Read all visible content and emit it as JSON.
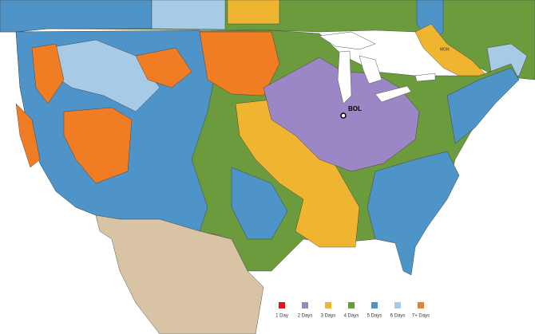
{
  "map": {
    "origin_label": "BOL",
    "city_labels": [
      "MON"
    ],
    "legend": [
      {
        "label": "1 Day",
        "color": "#e8141b"
      },
      {
        "label": "2 Days",
        "color": "#9b86c6"
      },
      {
        "label": "3 Days",
        "color": "#f0b530"
      },
      {
        "label": "4 Days",
        "color": "#6b9b3c"
      },
      {
        "label": "5 Days",
        "color": "#4f94c8"
      },
      {
        "label": "6 Days",
        "color": "#a7cbe6"
      },
      {
        "label": "7+ Days",
        "color": "#f07d23"
      }
    ]
  }
}
